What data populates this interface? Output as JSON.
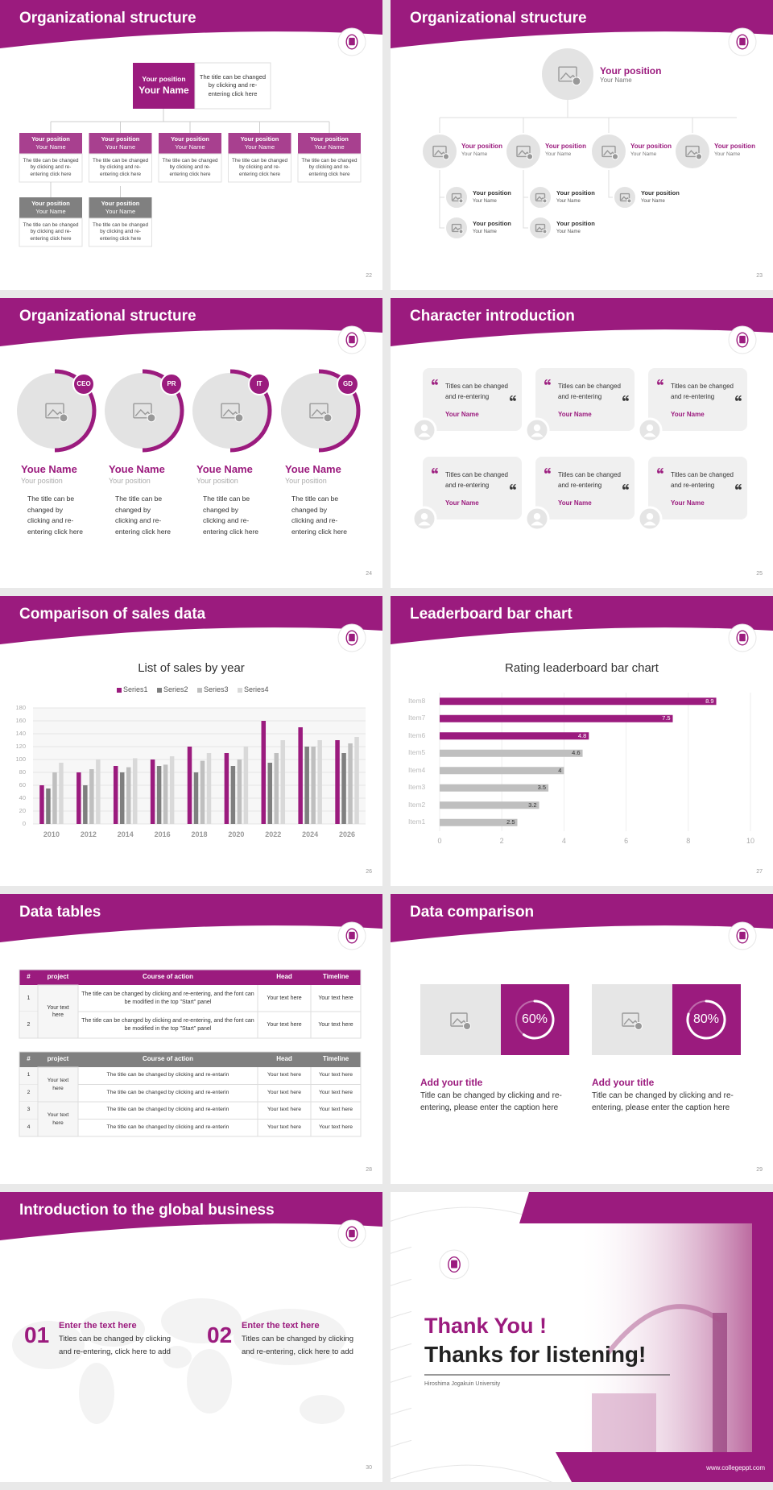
{
  "slides": [
    {
      "title": "Organizational structure",
      "page": "22",
      "head": {
        "position": "Your position",
        "name": "Your Name",
        "text": "The title can be changed by clicking and re-entering click here"
      },
      "units": [
        {
          "position": "Your position",
          "name": "Your Name",
          "text": "The title can be changed by clicking and re-entering click here"
        },
        {
          "position": "Your position",
          "name": "Your Name",
          "text": "The title can be changed by clicking and re-entering click here"
        },
        {
          "position": "Your position",
          "name": "Your Name",
          "text": "The title can be changed by clicking and re-entering click here"
        },
        {
          "position": "Your position",
          "name": "Your Name",
          "text": "The title can be changed by clicking and re-entering click here"
        },
        {
          "position": "Your position",
          "name": "Your Name",
          "text": "The title can be changed by clicking and re-entering click here"
        }
      ],
      "sub_units": [
        {
          "position": "Your position",
          "name": "Your Name",
          "text": "The title can be changed by clicking and re-entering click here"
        },
        {
          "position": "Your position",
          "name": "Your Name",
          "text": "The title can be changed by clicking and re-entering click here"
        }
      ]
    },
    {
      "title": "Organizational structure",
      "page": "23",
      "head": {
        "position": "Your position",
        "name": "Your Name"
      },
      "branches": [
        {
          "position": "Your position",
          "name": "Your Name"
        },
        {
          "position": "Your position",
          "name": "Your Name"
        },
        {
          "position": "Your position",
          "name": "Your Name"
        },
        {
          "position": "Your position",
          "name": "Your Name"
        }
      ],
      "members": [
        {
          "position": "Your position",
          "name": "Your Name"
        },
        {
          "position": "Your position",
          "name": "Your Name"
        },
        {
          "position": "Your position",
          "name": "Your Name"
        },
        {
          "position": "Your position",
          "name": "Your Name"
        },
        {
          "position": "Your position",
          "name": "Your Name"
        }
      ]
    },
    {
      "title": "Organizational structure",
      "page": "24",
      "cards": [
        {
          "badge": "CEO",
          "name": "Youe Name",
          "position": "Your position",
          "text": "The title can be changed by clicking and re-entering click here"
        },
        {
          "badge": "PR",
          "name": "Youe Name",
          "position": "Your position",
          "text": "The title can be changed by clicking and re-entering click here"
        },
        {
          "badge": "IT",
          "name": "Youe Name",
          "position": "Your position",
          "text": "The title can be changed by clicking and re-entering click here"
        },
        {
          "badge": "GD",
          "name": "Youe Name",
          "position": "Your position",
          "text": "The title can be changed by clicking and re-entering click here"
        }
      ]
    },
    {
      "title": "Character introduction",
      "page": "25",
      "cards": [
        {
          "text": "Titles can be changed and re-entering",
          "name": "Your Name"
        },
        {
          "text": "Titles can be changed and re-entering",
          "name": "Your Name"
        },
        {
          "text": "Titles can be changed and re-entering",
          "name": "Your Name"
        },
        {
          "text": "Titles can be changed and re-entering",
          "name": "Your Name"
        },
        {
          "text": "Titles can be changed and re-entering",
          "name": "Your Name"
        },
        {
          "text": "Titles can be changed and re-entering",
          "name": "Your Name"
        }
      ]
    },
    {
      "title": "Comparison of sales data",
      "page": "26",
      "chart_data": {
        "type": "bar",
        "title": "List of sales by year",
        "categories": [
          "2010",
          "2012",
          "2014",
          "2016",
          "2018",
          "2020",
          "2022",
          "2024",
          "2026"
        ],
        "series": [
          {
            "name": "Series1",
            "color": "#9b1b7e",
            "values": [
              60,
              80,
              90,
              100,
              120,
              110,
              160,
              150,
              130
            ]
          },
          {
            "name": "Series2",
            "color": "#7f7f7f",
            "values": [
              55,
              60,
              80,
              90,
              80,
              90,
              95,
              120,
              110
            ]
          },
          {
            "name": "Series3",
            "color": "#bfbfbf",
            "values": [
              80,
              85,
              88,
              92,
              98,
              100,
              110,
              120,
              125
            ]
          },
          {
            "name": "Series4",
            "color": "#d9d9d9",
            "values": [
              95,
              100,
              102,
              105,
              110,
              120,
              130,
              130,
              135
            ]
          }
        ],
        "ylim": [
          0,
          180
        ],
        "yticks": [
          0,
          20,
          40,
          60,
          80,
          100,
          120,
          140,
          160,
          180
        ],
        "grid": true,
        "legend": "top"
      }
    },
    {
      "title": "Leaderboard bar chart",
      "page": "27",
      "chart_data": {
        "type": "hbar",
        "title": "Rating leaderboard bar chart",
        "categories": [
          "Item8",
          "Item7",
          "Item6",
          "Item5",
          "Item4",
          "Item3",
          "Item2",
          "Item1"
        ],
        "values": [
          8.9,
          7.5,
          4.8,
          4.6,
          4,
          3.5,
          3.2,
          2.5
        ],
        "colors": [
          "#9b1b7e",
          "#9b1b7e",
          "#9b1b7e",
          "#bfbfbf",
          "#bfbfbf",
          "#bfbfbf",
          "#bfbfbf",
          "#bfbfbf"
        ],
        "xlim": [
          0,
          10
        ],
        "xticks": [
          0,
          2,
          4,
          6,
          8,
          10
        ],
        "grid": true
      }
    },
    {
      "title": "Data tables",
      "page": "28",
      "tables": [
        {
          "header_color": "#9b1b7e",
          "header": [
            "#",
            "project",
            "Course of action",
            "Head",
            "Timeline"
          ],
          "groups": [
            {
              "project": "Your text here",
              "rows": [
                [
                  "1",
                  "The title can be changed by clicking and re-entering, and the font can be modified in the top \"Start\" panel",
                  "Your text here",
                  "Your text here"
                ],
                [
                  "2",
                  "The title can be changed by clicking and re-entering, and the font can be modified in the top \"Start\" panel",
                  "Your text here",
                  "Your text here"
                ]
              ]
            }
          ]
        },
        {
          "header_color": "#808080",
          "header": [
            "#",
            "project",
            "Course of action",
            "Head",
            "Timeline"
          ],
          "groups": [
            {
              "project": "Your text here",
              "rows": [
                [
                  "1",
                  "The title can be changed by clicking and re-entarin",
                  "Your text here",
                  "Your text here"
                ],
                [
                  "2",
                  "The title can be changed by clicking and re-enterin",
                  "Your text here",
                  "Your text here"
                ]
              ]
            },
            {
              "project": "Your text here",
              "rows": [
                [
                  "3",
                  "The title can be changed by clicking and re-enterin",
                  "Your text here",
                  "Your text here"
                ],
                [
                  "4",
                  "The title can be changed by clicking and re-enterin",
                  "Your text here",
                  "Your text here"
                ]
              ]
            }
          ]
        }
      ]
    },
    {
      "title": "Data comparison",
      "page": "29",
      "cards": [
        {
          "value": 60,
          "value_label": "60%",
          "title": "Add your title",
          "text": "Title can be changed by clicking and re-entering, please enter the caption here"
        },
        {
          "value": 80,
          "value_label": "80%",
          "title": "Add your title",
          "text": "Title can be changed by clicking and re-entering, please enter the caption here"
        }
      ]
    },
    {
      "title": "Introduction to the global business",
      "page": "30",
      "items": [
        {
          "number": "01",
          "title": "Enter the text here",
          "text": "Titles can be changed by clicking and re-entering, click here to add"
        },
        {
          "number": "02",
          "title": "Enter the text here",
          "text": "Titles can be changed by clicking and re-entering, click here to add"
        }
      ]
    },
    {
      "headline": "Thank You !",
      "subline": "Thanks for listening!",
      "university": "Hiroshima Jogakuin University",
      "website": "www.collegeppt.com"
    }
  ]
}
